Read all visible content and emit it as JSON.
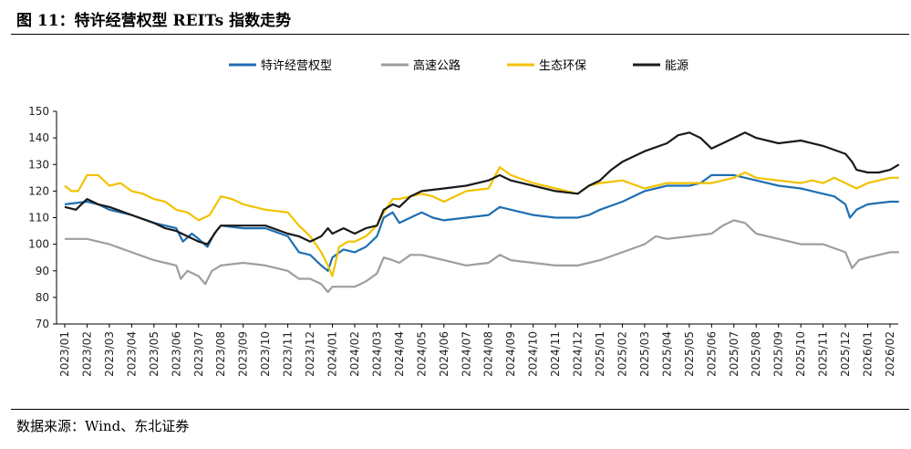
{
  "figure": {
    "title": "图 11：特许经营权型 REITs 指数走势",
    "source": "数据来源：Wind、东北证券"
  },
  "chart_data": {
    "type": "line",
    "title": "特许经营权型 REITs 指数走势",
    "xlabel": "",
    "ylabel": "",
    "ylim": [
      70,
      150
    ],
    "yticks": [
      70,
      80,
      90,
      100,
      110,
      120,
      130,
      140,
      150
    ],
    "legend_position": "top",
    "x": [
      "2023/01",
      "2023/02",
      "2023/03",
      "2023/04",
      "2023/05",
      "2023/06",
      "2023/07",
      "2023/08",
      "2023/09",
      "2023/10",
      "2023/11",
      "2023/12",
      "2024/01",
      "2024/02",
      "2024/03",
      "2024/04",
      "2024/05",
      "2024/06",
      "2024/07",
      "2024/08",
      "2024/09",
      "2024/10",
      "2024/11",
      "2024/12",
      "2025/01",
      "2025/02",
      "2025/03",
      "2025/04",
      "2025/05",
      "2025/06",
      "2025/07",
      "2025/08",
      "2025/09",
      "2025/10",
      "2025/11",
      "2025/12",
      "2026/01",
      "2026/02"
    ],
    "series": [
      {
        "name": "特许经营权型",
        "color": "#1f6fb2",
        "points": [
          [
            0,
            115
          ],
          [
            1,
            116
          ],
          [
            1.5,
            115
          ],
          [
            2,
            113
          ],
          [
            3,
            111
          ],
          [
            4,
            108
          ],
          [
            4.5,
            107
          ],
          [
            5,
            106
          ],
          [
            5.3,
            101
          ],
          [
            5.7,
            104
          ],
          [
            6,
            102
          ],
          [
            6.4,
            99
          ],
          [
            6.7,
            104
          ],
          [
            7,
            107
          ],
          [
            8,
            106
          ],
          [
            9,
            106
          ],
          [
            10,
            103
          ],
          [
            10.5,
            97
          ],
          [
            11,
            96
          ],
          [
            11.5,
            92
          ],
          [
            11.8,
            90
          ],
          [
            12,
            95
          ],
          [
            12.5,
            98
          ],
          [
            13,
            97
          ],
          [
            13.5,
            99
          ],
          [
            14,
            103
          ],
          [
            14.3,
            110
          ],
          [
            14.7,
            112
          ],
          [
            15,
            108
          ],
          [
            15.5,
            110
          ],
          [
            16,
            112
          ],
          [
            16.5,
            110
          ],
          [
            17,
            109
          ],
          [
            18,
            110
          ],
          [
            19,
            111
          ],
          [
            19.5,
            114
          ],
          [
            20,
            113
          ],
          [
            21,
            111
          ],
          [
            22,
            110
          ],
          [
            23,
            110
          ],
          [
            23.5,
            111
          ],
          [
            24,
            113
          ],
          [
            25,
            116
          ],
          [
            26,
            120
          ],
          [
            27,
            122
          ],
          [
            28,
            122
          ],
          [
            28.5,
            123
          ],
          [
            29,
            126
          ],
          [
            30,
            126
          ],
          [
            30.5,
            125
          ],
          [
            31,
            124
          ],
          [
            32,
            122
          ],
          [
            33,
            121
          ],
          [
            33.5,
            120
          ],
          [
            34,
            119
          ],
          [
            34.5,
            118
          ],
          [
            35,
            115
          ],
          [
            35.2,
            110
          ],
          [
            35.5,
            113
          ],
          [
            36,
            115
          ],
          [
            37,
            116
          ],
          [
            37.4,
            116
          ]
        ]
      },
      {
        "name": "高速公路",
        "color": "#9e9e9e",
        "points": [
          [
            0,
            102
          ],
          [
            1,
            102
          ],
          [
            1.5,
            101
          ],
          [
            2,
            100
          ],
          [
            3,
            97
          ],
          [
            4,
            94
          ],
          [
            4.5,
            93
          ],
          [
            5,
            92
          ],
          [
            5.2,
            87
          ],
          [
            5.5,
            90
          ],
          [
            6,
            88
          ],
          [
            6.3,
            85
          ],
          [
            6.6,
            90
          ],
          [
            7,
            92
          ],
          [
            8,
            93
          ],
          [
            9,
            92
          ],
          [
            10,
            90
          ],
          [
            10.5,
            87
          ],
          [
            11,
            87
          ],
          [
            11.5,
            85
          ],
          [
            11.8,
            82
          ],
          [
            12,
            84
          ],
          [
            13,
            84
          ],
          [
            13.5,
            86
          ],
          [
            14,
            89
          ],
          [
            14.3,
            95
          ],
          [
            14.7,
            94
          ],
          [
            15,
            93
          ],
          [
            15.5,
            96
          ],
          [
            16,
            96
          ],
          [
            17,
            94
          ],
          [
            18,
            92
          ],
          [
            19,
            93
          ],
          [
            19.5,
            96
          ],
          [
            20,
            94
          ],
          [
            21,
            93
          ],
          [
            22,
            92
          ],
          [
            23,
            92
          ],
          [
            23.5,
            93
          ],
          [
            24,
            94
          ],
          [
            25,
            97
          ],
          [
            26,
            100
          ],
          [
            26.5,
            103
          ],
          [
            27,
            102
          ],
          [
            28,
            103
          ],
          [
            29,
            104
          ],
          [
            29.5,
            107
          ],
          [
            30,
            109
          ],
          [
            30.5,
            108
          ],
          [
            31,
            104
          ],
          [
            32,
            102
          ],
          [
            33,
            100
          ],
          [
            34,
            100
          ],
          [
            35,
            97
          ],
          [
            35.3,
            91
          ],
          [
            35.6,
            94
          ],
          [
            36,
            95
          ],
          [
            37,
            97
          ],
          [
            37.4,
            97
          ]
        ]
      },
      {
        "name": "生态环保",
        "color": "#f2c200",
        "points": [
          [
            0,
            122
          ],
          [
            0.3,
            120
          ],
          [
            0.6,
            120
          ],
          [
            1,
            126
          ],
          [
            1.5,
            126
          ],
          [
            2,
            122
          ],
          [
            2.5,
            123
          ],
          [
            3,
            120
          ],
          [
            3.5,
            119
          ],
          [
            4,
            117
          ],
          [
            4.5,
            116
          ],
          [
            5,
            113
          ],
          [
            5.5,
            112
          ],
          [
            6,
            109
          ],
          [
            6.5,
            111
          ],
          [
            7,
            118
          ],
          [
            7.5,
            117
          ],
          [
            8,
            115
          ],
          [
            9,
            113
          ],
          [
            10,
            112
          ],
          [
            10.5,
            107
          ],
          [
            11,
            103
          ],
          [
            11.5,
            97
          ],
          [
            11.8,
            92
          ],
          [
            12,
            88
          ],
          [
            12.3,
            99
          ],
          [
            12.7,
            101
          ],
          [
            13,
            101
          ],
          [
            13.5,
            103
          ],
          [
            14,
            107
          ],
          [
            14.3,
            112
          ],
          [
            14.7,
            117
          ],
          [
            15,
            117
          ],
          [
            15.5,
            118
          ],
          [
            16,
            119
          ],
          [
            16.5,
            118
          ],
          [
            17,
            116
          ],
          [
            17.5,
            118
          ],
          [
            18,
            120
          ],
          [
            19,
            121
          ],
          [
            19.5,
            129
          ],
          [
            20,
            126
          ],
          [
            21,
            123
          ],
          [
            22,
            121
          ],
          [
            23,
            119
          ],
          [
            23.5,
            122
          ],
          [
            24,
            123
          ],
          [
            25,
            124
          ],
          [
            26,
            121
          ],
          [
            27,
            123
          ],
          [
            28,
            123
          ],
          [
            29,
            123
          ],
          [
            30,
            125
          ],
          [
            30.5,
            127
          ],
          [
            31,
            125
          ],
          [
            32,
            124
          ],
          [
            33,
            123
          ],
          [
            33.5,
            124
          ],
          [
            34,
            123
          ],
          [
            34.5,
            125
          ],
          [
            35,
            123
          ],
          [
            35.5,
            121
          ],
          [
            36,
            123
          ],
          [
            37,
            125
          ],
          [
            37.4,
            125
          ]
        ]
      },
      {
        "name": "能源",
        "color": "#1a1a1a",
        "points": [
          [
            0,
            114
          ],
          [
            0.5,
            113
          ],
          [
            1,
            117
          ],
          [
            1.5,
            115
          ],
          [
            2,
            114
          ],
          [
            3,
            111
          ],
          [
            4,
            108
          ],
          [
            4.5,
            106
          ],
          [
            5,
            105
          ],
          [
            5.5,
            103
          ],
          [
            6,
            101
          ],
          [
            6.4,
            100
          ],
          [
            6.8,
            105
          ],
          [
            7,
            107
          ],
          [
            8,
            107
          ],
          [
            9,
            107
          ],
          [
            10,
            104
          ],
          [
            10.5,
            103
          ],
          [
            11,
            101
          ],
          [
            11.5,
            103
          ],
          [
            11.8,
            106
          ],
          [
            12,
            104
          ],
          [
            12.5,
            106
          ],
          [
            13,
            104
          ],
          [
            13.5,
            106
          ],
          [
            14,
            107
          ],
          [
            14.3,
            113
          ],
          [
            14.7,
            115
          ],
          [
            15,
            114
          ],
          [
            15.5,
            118
          ],
          [
            16,
            120
          ],
          [
            17,
            121
          ],
          [
            18,
            122
          ],
          [
            19,
            124
          ],
          [
            19.5,
            126
          ],
          [
            20,
            124
          ],
          [
            21,
            122
          ],
          [
            22,
            120
          ],
          [
            23,
            119
          ],
          [
            23.5,
            122
          ],
          [
            24,
            124
          ],
          [
            24.5,
            128
          ],
          [
            25,
            131
          ],
          [
            26,
            135
          ],
          [
            27,
            138
          ],
          [
            27.5,
            141
          ],
          [
            28,
            142
          ],
          [
            28.5,
            140
          ],
          [
            29,
            136
          ],
          [
            29.5,
            138
          ],
          [
            30,
            140
          ],
          [
            30.5,
            142
          ],
          [
            31,
            140
          ],
          [
            32,
            138
          ],
          [
            33,
            139
          ],
          [
            34,
            137
          ],
          [
            35,
            134
          ],
          [
            35.3,
            131
          ],
          [
            35.5,
            128
          ],
          [
            36,
            127
          ],
          [
            36.5,
            127
          ],
          [
            37,
            128
          ],
          [
            37.4,
            130
          ]
        ]
      }
    ]
  }
}
